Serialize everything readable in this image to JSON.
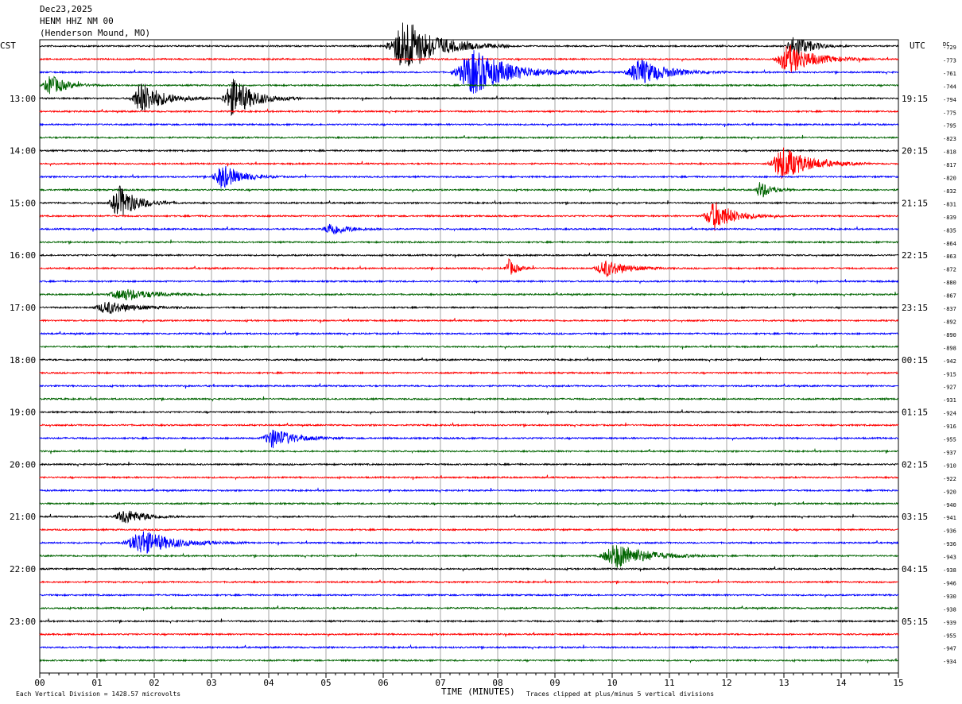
{
  "header": {
    "date": "Dec23,2025",
    "station": "HENM HHZ NM 00",
    "location": "(Henderson Mound, MO)"
  },
  "labels": {
    "left_tz": "CST",
    "right_tz": "UTC",
    "dc_label": "DC",
    "x_title": "TIME (MINUTES)",
    "footer_left": "Each Vertical Division = 1428.57 microvolts",
    "footer_right": "Traces clipped at plus/minus 5 vertical divisions"
  },
  "colors": {
    "trace_cycle": [
      "#000000",
      "#ff0000",
      "#0000ff",
      "#006400"
    ],
    "grid": "#808080",
    "text": "#000000"
  },
  "chart_data": {
    "type": "helicorder",
    "minutes_per_line": 15,
    "line_count": 48,
    "x_ticks": [
      "00",
      "01",
      "02",
      "03",
      "04",
      "05",
      "06",
      "07",
      "08",
      "09",
      "10",
      "11",
      "12",
      "13",
      "14",
      "15"
    ],
    "xlim": [
      0,
      15
    ],
    "left_hour_labels": [
      {
        "line": 4,
        "text": "13:00"
      },
      {
        "line": 8,
        "text": "14:00"
      },
      {
        "line": 12,
        "text": "15:00"
      },
      {
        "line": 16,
        "text": "16:00"
      },
      {
        "line": 20,
        "text": "17:00"
      },
      {
        "line": 24,
        "text": "18:00"
      },
      {
        "line": 28,
        "text": "19:00"
      },
      {
        "line": 32,
        "text": "20:00"
      },
      {
        "line": 36,
        "text": "21:00"
      },
      {
        "line": 40,
        "text": "22:00"
      },
      {
        "line": 44,
        "text": "23:00"
      }
    ],
    "right_hour_labels": [
      {
        "line": 4,
        "text": "19:15"
      },
      {
        "line": 8,
        "text": "20:15"
      },
      {
        "line": 12,
        "text": "21:15"
      },
      {
        "line": 16,
        "text": "22:15"
      },
      {
        "line": 20,
        "text": "23:15"
      },
      {
        "line": 24,
        "text": "00:15"
      },
      {
        "line": 28,
        "text": "01:15"
      },
      {
        "line": 32,
        "text": "02:15"
      },
      {
        "line": 36,
        "text": "03:15"
      },
      {
        "line": 40,
        "text": "04:15"
      },
      {
        "line": 44,
        "text": "05:15"
      }
    ],
    "dc_offsets": [
      "-729",
      "-773",
      "-761",
      "-744",
      "-794",
      "-775",
      "-795",
      "-823",
      "-818",
      "-817",
      "-820",
      "-832",
      "-831",
      "-839",
      "-835",
      "-864",
      "-863",
      "-872",
      "-880",
      "-867",
      "-837",
      "-892",
      "-890",
      "-898",
      "-942",
      "-915",
      "-927",
      "-931",
      "-924",
      "-916",
      "-955",
      "-937",
      "-910",
      "-922",
      "-920",
      "-940",
      "-941",
      "-936",
      "-936",
      "-943",
      "-938",
      "-946",
      "-930",
      "-938",
      "-939",
      "-955",
      "-947",
      "-934"
    ],
    "events": [
      {
        "line": 0,
        "minute": 6.4,
        "amplitude": 5,
        "width": 0.6
      },
      {
        "line": 0,
        "minute": 13.2,
        "amplitude": 2.2,
        "width": 0.3
      },
      {
        "line": 1,
        "minute": 13.1,
        "amplitude": 2.6,
        "width": 0.5
      },
      {
        "line": 2,
        "minute": 7.6,
        "amplitude": 4,
        "width": 0.7
      },
      {
        "line": 2,
        "minute": 10.5,
        "amplitude": 2.4,
        "width": 0.5
      },
      {
        "line": 3,
        "minute": 0.2,
        "amplitude": 1.8,
        "width": 0.3
      },
      {
        "line": 4,
        "minute": 1.8,
        "amplitude": 3,
        "width": 0.4
      },
      {
        "line": 4,
        "minute": 3.4,
        "amplitude": 3.5,
        "width": 0.4
      },
      {
        "line": 9,
        "minute": 13,
        "amplitude": 3,
        "width": 0.5
      },
      {
        "line": 10,
        "minute": 3.2,
        "amplitude": 2.2,
        "width": 0.35
      },
      {
        "line": 11,
        "minute": 12.6,
        "amplitude": 1.6,
        "width": 0.2
      },
      {
        "line": 12,
        "minute": 1.4,
        "amplitude": 3,
        "width": 0.35
      },
      {
        "line": 13,
        "minute": 11.8,
        "amplitude": 2.6,
        "width": 0.4
      },
      {
        "line": 14,
        "minute": 5.1,
        "amplitude": 1.2,
        "width": 0.3
      },
      {
        "line": 17,
        "minute": 8.2,
        "amplitude": 1.6,
        "width": 0.15
      },
      {
        "line": 17,
        "minute": 9.9,
        "amplitude": 1.5,
        "width": 0.4
      },
      {
        "line": 19,
        "minute": 1.5,
        "amplitude": 1,
        "width": 0.6
      },
      {
        "line": 20,
        "minute": 1.2,
        "amplitude": 1.1,
        "width": 0.5
      },
      {
        "line": 30,
        "minute": 4.1,
        "amplitude": 1.8,
        "width": 0.4
      },
      {
        "line": 36,
        "minute": 1.5,
        "amplitude": 1.3,
        "width": 0.4
      },
      {
        "line": 38,
        "minute": 1.8,
        "amplitude": 2.2,
        "width": 0.6
      },
      {
        "line": 39,
        "minute": 10.1,
        "amplitude": 2.2,
        "width": 0.6
      }
    ]
  }
}
